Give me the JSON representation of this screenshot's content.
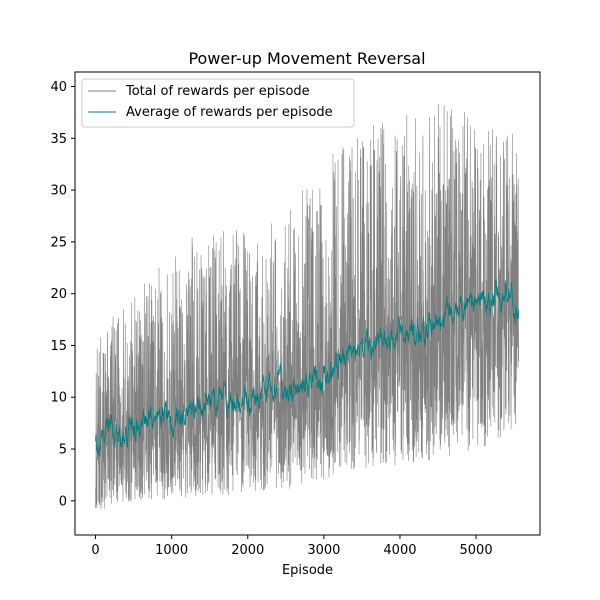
{
  "chart_data": {
    "type": "line",
    "title": "Power-up Movement Reversal",
    "xlabel": "Episode",
    "ylabel": "",
    "xlim": [
      -270,
      5840
    ],
    "ylim": [
      -3.3,
      41.4
    ],
    "xticks": [
      0,
      1000,
      2000,
      3000,
      4000,
      5000
    ],
    "yticks": [
      0,
      5,
      10,
      15,
      20,
      25,
      30,
      35,
      40
    ],
    "grid": false,
    "legend_position": "top-left",
    "n_episodes": 5560,
    "series": [
      {
        "name": "Total of rewards per episode",
        "color": "#808080",
        "line_width": 0.6,
        "envelope": {
          "x": [
            0,
            500,
            1000,
            1500,
            2000,
            2500,
            3000,
            3500,
            4000,
            4500,
            5000,
            5560
          ],
          "lower": [
            -1.0,
            0.0,
            0.0,
            0.5,
            0.5,
            1.0,
            2.0,
            3.0,
            3.5,
            4.0,
            5.0,
            6.0
          ],
          "upper": [
            16.0,
            20.0,
            24.0,
            27.0,
            26.0,
            28.0,
            33.0,
            36.0,
            37.0,
            39.0,
            37.0,
            36.0
          ]
        }
      },
      {
        "name": "Average of rewards per episode",
        "color": "#008080",
        "line_width": 0.8,
        "x": [
          0,
          100,
          250,
          500,
          750,
          1000,
          1250,
          1500,
          1750,
          2000,
          2250,
          2500,
          2750,
          3000,
          3250,
          3500,
          3750,
          4000,
          4250,
          4500,
          4750,
          5000,
          5250,
          5400,
          5560
        ],
        "values": [
          5.0,
          6.5,
          7.0,
          7.3,
          7.8,
          8.0,
          8.8,
          9.5,
          9.8,
          9.9,
          10.3,
          10.8,
          11.0,
          11.8,
          13.0,
          14.5,
          15.5,
          16.0,
          16.5,
          17.5,
          18.2,
          19.0,
          19.8,
          20.5,
          18.0
        ]
      }
    ]
  }
}
